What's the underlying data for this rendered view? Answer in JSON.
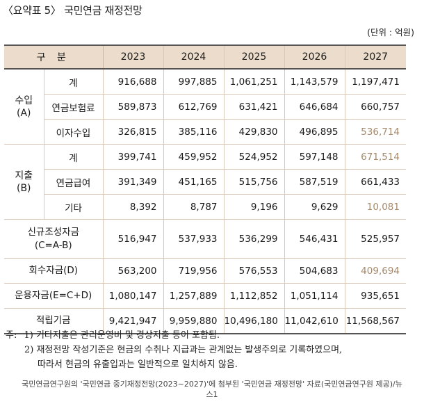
{
  "title": "〈요약표 5〉 국민연금 재정전망",
  "unit": "(단위 : 억원)",
  "header": {
    "group": "구 분",
    "years": [
      "2023",
      "2024",
      "2025",
      "2026",
      "2027"
    ]
  },
  "income": {
    "label_line1": "수입",
    "label_line2": "(A)",
    "rows": [
      {
        "label": "계",
        "values": [
          "916,688",
          "997,885",
          "1,061,251",
          "1,143,579",
          "1,197,471"
        ]
      },
      {
        "label": "연금보험료",
        "values": [
          "589,873",
          "612,769",
          "631,421",
          "646,684",
          "660,757"
        ]
      },
      {
        "label": "이자수입",
        "values": [
          "326,815",
          "385,116",
          "429,830",
          "496,895",
          "536,714"
        ]
      }
    ]
  },
  "expense": {
    "label_line1": "지출",
    "label_line2": "(B)",
    "rows": [
      {
        "label": "계",
        "values": [
          "399,741",
          "459,952",
          "524,952",
          "597,148",
          "671,514"
        ]
      },
      {
        "label": "연금급여",
        "values": [
          "391,349",
          "451,165",
          "515,756",
          "587,519",
          "661,433"
        ]
      },
      {
        "label": "기타",
        "values": [
          "8,392",
          "8,787",
          "9,196",
          "9,629",
          "10,081"
        ]
      }
    ]
  },
  "new_fund": {
    "label_line1": "신규조성자금",
    "label_line2": "(C=A-B)",
    "values": [
      "516,947",
      "537,933",
      "536,299",
      "546,431",
      "525,957"
    ]
  },
  "recovery": {
    "label": "회수자금(D)",
    "values": [
      "563,200",
      "719,956",
      "576,553",
      "504,683",
      "409,694"
    ]
  },
  "operating": {
    "label": "운용자금(E=C+D)",
    "values": [
      "1,080,147",
      "1,257,889",
      "1,112,852",
      "1,051,114",
      "935,651"
    ]
  },
  "reserve": {
    "label": "적립기금",
    "values": [
      "9,421,947",
      "9,959,880",
      "10,496,180",
      "11,042,610",
      "11,568,567"
    ]
  },
  "notes": {
    "prefix": "주:",
    "note1": "1) 기타지출은 관리운영비 및 경상지출 등이 포함됨.",
    "note2_line1": "2) 재정전망 작성기준은 현금의 수취나 지급과는 관계없는 발생주의로 기록하였으며,",
    "note2_line2": "따라서 현금의 유출입과는 일반적으로 일치하지 않음."
  },
  "source": {
    "line1": "국민연금연구원의 '국민연금 중기재정전망(2023~2027)'에 첨부된 '국민연금 재정전망' 자료(국민연금연구원 제공)/뉴",
    "line2": "스1"
  }
}
